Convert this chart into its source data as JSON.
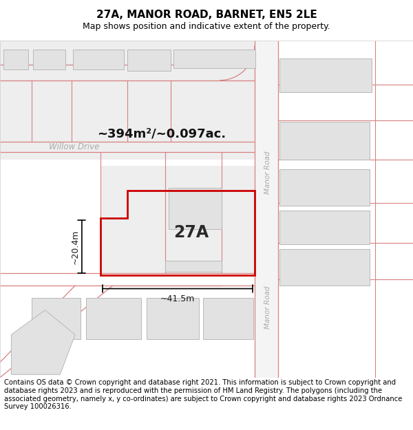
{
  "title": "27A, MANOR ROAD, BARNET, EN5 2LE",
  "subtitle": "Map shows position and indicative extent of the property.",
  "footer": "Contains OS data © Crown copyright and database right 2021. This information is subject to Crown copyright and database rights 2023 and is reproduced with the permission of HM Land Registry. The polygons (including the associated geometry, namely x, y co-ordinates) are subject to Crown copyright and database rights 2023 Ordnance Survey 100026316.",
  "area_label": "~394m²/~0.097ac.",
  "width_label": "~41.5m",
  "height_label": "~20.4m",
  "property_label": "27A",
  "street_label_upper": "Manor Road",
  "street_label_lower": "Manor Road",
  "willow_drive_label": "Willow Drive",
  "pink": "#d88080",
  "red": "#cc0000",
  "bfill": "#e2e2e2",
  "bstroke": "#b8b8b8",
  "map_bg": "#f4f4f4",
  "white": "#ffffff",
  "title_fs": 11,
  "subtitle_fs": 9,
  "footer_fs": 7.2,
  "area_fs": 13,
  "label_fs": 9,
  "prop_label_fs": 17
}
